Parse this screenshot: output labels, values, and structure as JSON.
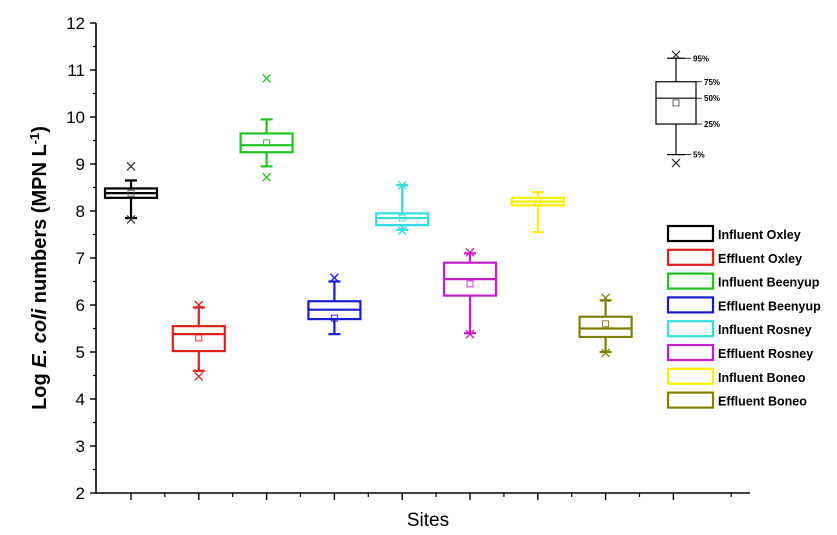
{
  "chart_data": {
    "type": "box",
    "title": "",
    "xlabel": "Sites",
    "ylabel_parts": {
      "prefix": "Log ",
      "italic": "E. coli",
      "suffix": " numbers (MPN L",
      "sup": "-1",
      "close": ")"
    },
    "ylim": [
      2,
      12
    ],
    "yticks": [
      "2",
      "3",
      "4",
      "5",
      "6",
      "7",
      "8",
      "9",
      "10",
      "11",
      "12"
    ],
    "grid": false,
    "legend_position": "right",
    "series": [
      {
        "name": "Influent Oxley",
        "color": "#000000",
        "min": 7.85,
        "q1": 8.28,
        "median": 8.38,
        "q3": 8.48,
        "max": 8.65,
        "mean": 8.38,
        "outliers": [
          7.82,
          8.95
        ]
      },
      {
        "name": "Effluent Oxley",
        "color": "#e0201b",
        "min": 4.6,
        "q1": 5.02,
        "median": 5.38,
        "q3": 5.55,
        "max": 5.95,
        "mean": 5.3,
        "outliers": [
          4.48,
          6.0
        ]
      },
      {
        "name": "Influent Beenyup",
        "color": "#22c222",
        "min": 8.95,
        "q1": 9.25,
        "median": 9.4,
        "q3": 9.65,
        "max": 9.95,
        "mean": 9.45,
        "outliers": [
          8.72,
          10.82
        ]
      },
      {
        "name": "Effluent Beenyup",
        "color": "#1a1acd",
        "min": 5.38,
        "q1": 5.7,
        "median": 5.9,
        "q3": 6.08,
        "max": 6.5,
        "mean": 5.72,
        "outliers": [
          6.58
        ]
      },
      {
        "name": "Influent Rosney",
        "color": "#33dede",
        "min": 7.6,
        "q1": 7.7,
        "median": 7.85,
        "q3": 7.95,
        "max": 8.55,
        "mean": 7.85,
        "outliers": [
          7.58,
          8.55
        ]
      },
      {
        "name": "Effluent Rosney",
        "color": "#c61ec6",
        "min": 5.4,
        "q1": 6.2,
        "median": 6.55,
        "q3": 6.9,
        "max": 7.1,
        "mean": 6.45,
        "outliers": [
          5.38,
          7.12
        ]
      },
      {
        "name": "Influent Boneo",
        "color": "#ffee00",
        "min": 7.55,
        "q1": 8.12,
        "median": 8.2,
        "q3": 8.28,
        "max": 8.4,
        "mean": 8.2,
        "outliers": []
      },
      {
        "name": "Effluent Boneo",
        "color": "#808000",
        "min": 5.0,
        "q1": 5.32,
        "median": 5.5,
        "q3": 5.75,
        "max": 6.1,
        "mean": 5.6,
        "outliers": [
          4.98,
          6.15
        ]
      }
    ],
    "legend_labels": [
      "Influent Oxley",
      "Effluent Oxley",
      "Influent Beenyup",
      "Effluent Beenyup",
      "Influent Rosney",
      "Effluent Rosney",
      "Influent Boneo",
      "Effluent Boneo"
    ],
    "key_box": {
      "labels": [
        "95%",
        "75%",
        "50%",
        "25%",
        "5%"
      ],
      "values": {
        "p95": 11.25,
        "q3": 10.75,
        "median": 10.4,
        "q1": 9.85,
        "p5": 9.2,
        "mean": 10.3,
        "outliers": [
          9.02,
          11.32
        ]
      }
    }
  }
}
